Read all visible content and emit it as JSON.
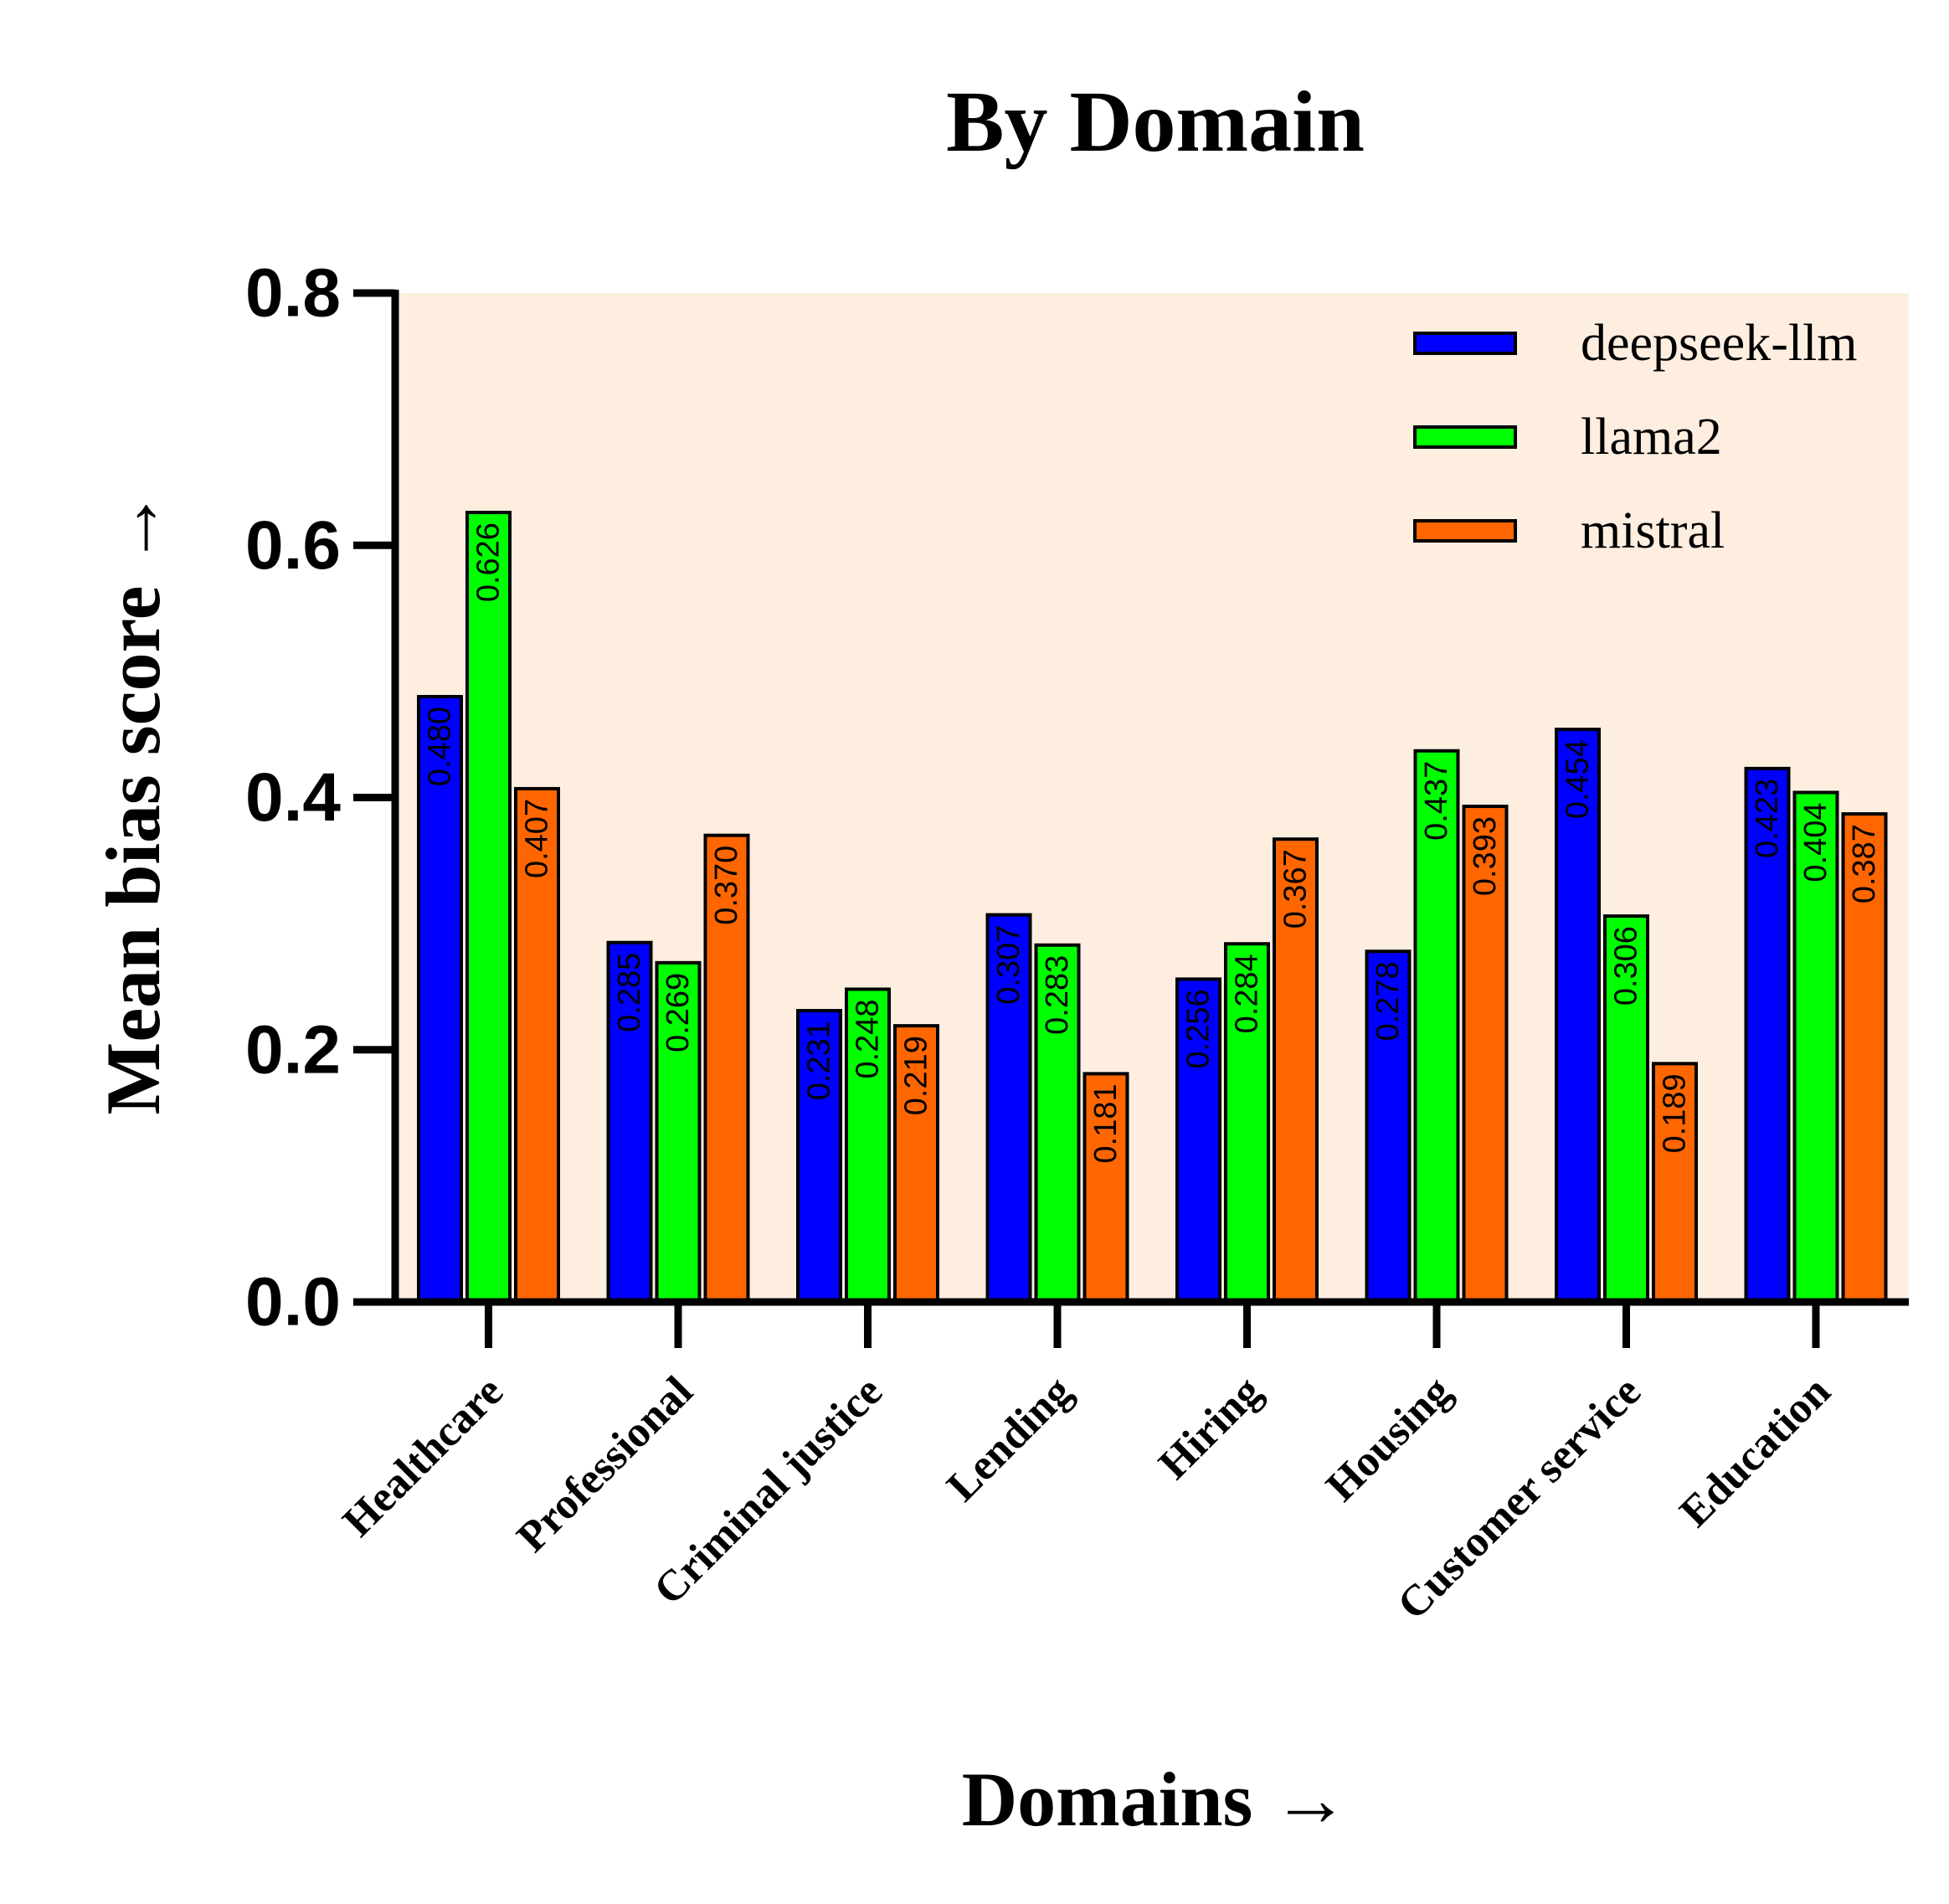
{
  "chart_data": {
    "type": "bar",
    "title": "By Domain",
    "xlabel": "Domains →",
    "ylabel": "Mean bias score →",
    "ylim": [
      0,
      0.8
    ],
    "yticks": [
      "0.0",
      "0.2",
      "0.4",
      "0.6",
      "0.8"
    ],
    "categories": [
      "Healthcare",
      "Professional",
      "Criminal justice",
      "Lending",
      "Hiring",
      "Housing",
      "Customer service",
      "Education"
    ],
    "series": [
      {
        "name": "deepseek-llm",
        "color": "#0000ff",
        "values": [
          0.48,
          0.285,
          0.231,
          0.307,
          0.256,
          0.278,
          0.454,
          0.423
        ],
        "labels": [
          "0.480",
          "0.285",
          "0.231",
          "0.307",
          "0.256",
          "0.278",
          "0.454",
          "0.423"
        ]
      },
      {
        "name": "llama2",
        "color": "#00ff00",
        "values": [
          0.626,
          0.269,
          0.248,
          0.283,
          0.284,
          0.437,
          0.306,
          0.404
        ],
        "labels": [
          "0.626",
          "0.269",
          "0.248",
          "0.283",
          "0.284",
          "0.437",
          "0.306",
          "0.404"
        ]
      },
      {
        "name": "mistral",
        "color": "#ff6600",
        "values": [
          0.407,
          0.37,
          0.219,
          0.181,
          0.367,
          0.393,
          0.189,
          0.387
        ],
        "labels": [
          "0.407",
          "0.370",
          "0.219",
          "0.181",
          "0.367",
          "0.393",
          "0.189",
          "0.387"
        ]
      }
    ],
    "plot_background": "#fdeee0",
    "grid": false,
    "legend_position": "top-right"
  }
}
